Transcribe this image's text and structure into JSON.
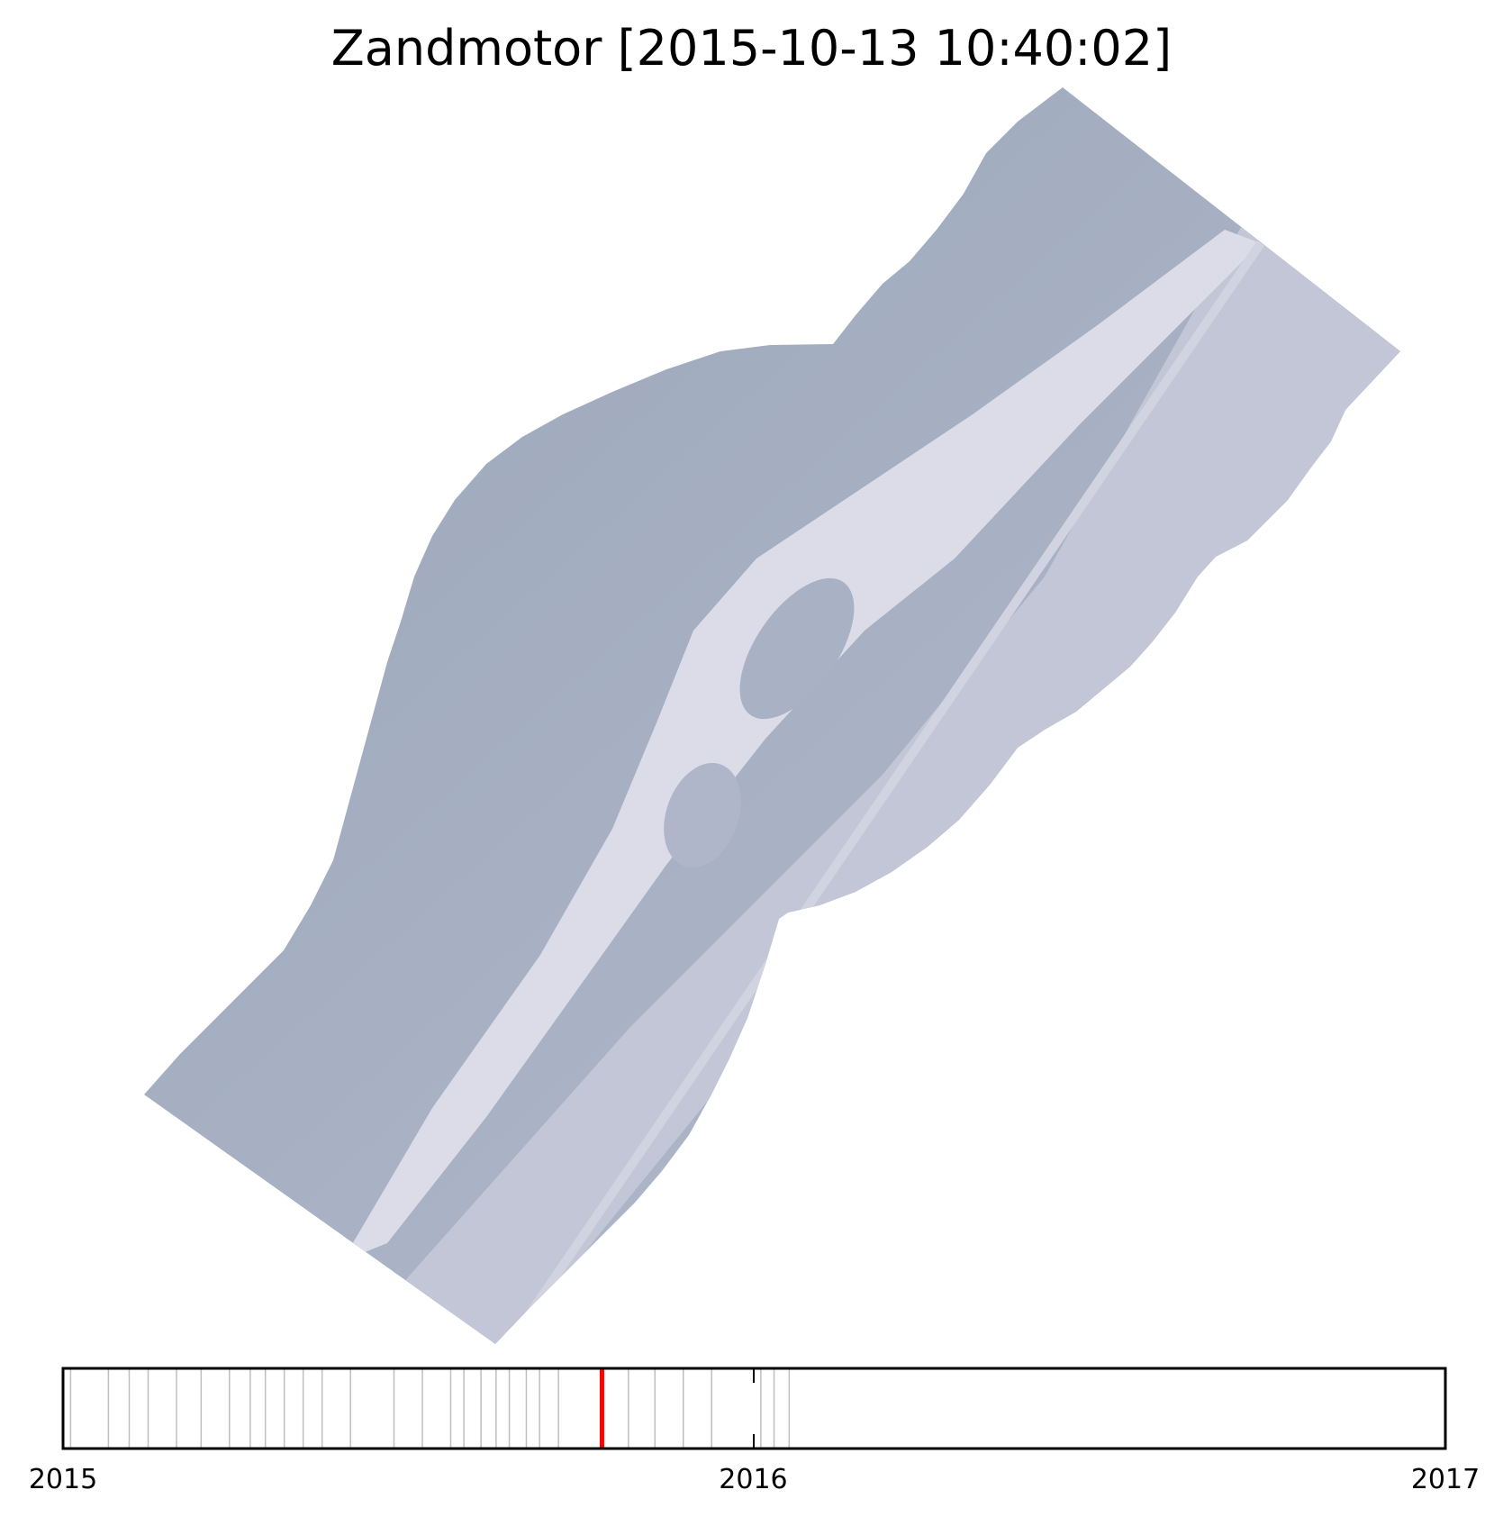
{
  "title": "Zandmotor [2015-10-13 10:40:02]",
  "imagery": {
    "description_name": "satellite-image-of-zandmotor-coast",
    "colors": {
      "sea": "#a3adbf",
      "beach": "#dcdce8",
      "dunes": "#c3c6d6"
    }
  },
  "chart_data": {
    "type": "timeline",
    "title": "Zandmotor [2015-10-13 10:40:02]",
    "x_range": [
      "2015-01-01",
      "2017-01-01"
    ],
    "tick_labels": [
      "2015",
      "2016",
      "2017"
    ],
    "tick_dates": [
      "2015-01-01",
      "2016-01-01",
      "2017-01-01"
    ],
    "image_dates": [
      "2015-01-05",
      "2015-01-25",
      "2015-02-05",
      "2015-02-15",
      "2015-03-02",
      "2015-03-15",
      "2015-03-30",
      "2015-04-10",
      "2015-04-18",
      "2015-04-28",
      "2015-05-08",
      "2015-05-18",
      "2015-06-02",
      "2015-06-25",
      "2015-07-10",
      "2015-07-25",
      "2015-08-01",
      "2015-08-10",
      "2015-08-18",
      "2015-08-25",
      "2015-09-03",
      "2015-09-10",
      "2015-09-20",
      "2015-10-13",
      "2015-10-27",
      "2015-11-10",
      "2015-11-25",
      "2015-12-10",
      "2016-01-05",
      "2016-01-12",
      "2016-01-20"
    ],
    "current_date": "2015-10-13",
    "colors": {
      "image_line": "#bfbfbf",
      "current_line": "#ff0000",
      "axis": "#000000"
    }
  }
}
